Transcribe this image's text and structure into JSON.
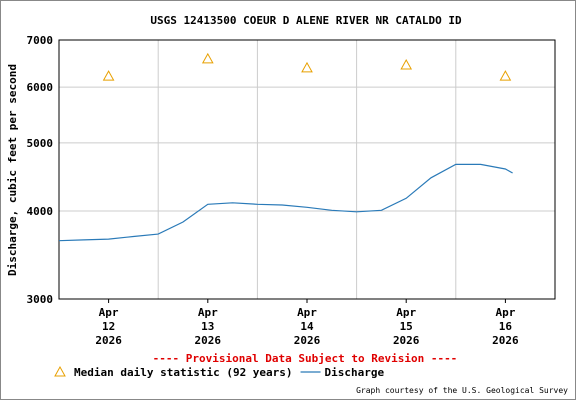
{
  "chart_data": {
    "type": "line",
    "title": "USGS 12413500 COEUR D ALENE RIVER NR CATALDO ID",
    "y_label": "Discharge, cubic feet per second",
    "annotation": "---- Provisional Data Subject to Revision ----",
    "footer": "Graph courtesy of the U.S. Geological Survey",
    "log_scale": true,
    "grid": true,
    "ylim": [
      3000,
      7000
    ],
    "yticks": [
      3000,
      4000,
      5000,
      6000,
      7000
    ],
    "xlim": [
      "2026-04-12T00:00",
      "2026-04-17T00:00"
    ],
    "xticks": [
      {
        "value": "2026-04-12T12:00",
        "label": "Apr 12 2026"
      },
      {
        "value": "2026-04-13T12:00",
        "label": "Apr 13 2026"
      },
      {
        "value": "2026-04-14T12:00",
        "label": "Apr 14 2026"
      },
      {
        "value": "2026-04-15T12:00",
        "label": "Apr 15 2026"
      },
      {
        "value": "2026-04-16T12:00",
        "label": "Apr 16 2026"
      }
    ],
    "xgrid": [
      "2026-04-13T00:00",
      "2026-04-14T00:00",
      "2026-04-15T00:00",
      "2026-04-16T00:00"
    ],
    "series": [
      {
        "name": "Median daily statistic (92 years)",
        "color": "#e8a000",
        "marker": "triangle",
        "x": [
          "2026-04-12T12:00",
          "2026-04-13T12:00",
          "2026-04-14T12:00",
          "2026-04-15T12:00",
          "2026-04-16T12:00"
        ],
        "values": [
          6220,
          6580,
          6390,
          6450,
          6220
        ]
      },
      {
        "name": "Discharge",
        "color": "#2a7ab8",
        "marker": "line",
        "x": [
          "2026-04-12T00:00",
          "2026-04-12T06:00",
          "2026-04-12T12:00",
          "2026-04-12T18:00",
          "2026-04-13T00:00",
          "2026-04-13T06:00",
          "2026-04-13T12:00",
          "2026-04-13T18:00",
          "2026-04-14T00:00",
          "2026-04-14T06:00",
          "2026-04-14T12:00",
          "2026-04-14T18:00",
          "2026-04-15T00:00",
          "2026-04-15T06:00",
          "2026-04-15T12:00",
          "2026-04-15T18:00",
          "2026-04-16T00:00",
          "2026-04-16T06:00",
          "2026-04-16T12:00",
          "2026-04-16T13:45"
        ],
        "values": [
          3630,
          3640,
          3650,
          3680,
          3710,
          3860,
          4090,
          4110,
          4090,
          4080,
          4050,
          4010,
          3990,
          4010,
          4170,
          4460,
          4660,
          4660,
          4590,
          4530
        ]
      }
    ]
  }
}
